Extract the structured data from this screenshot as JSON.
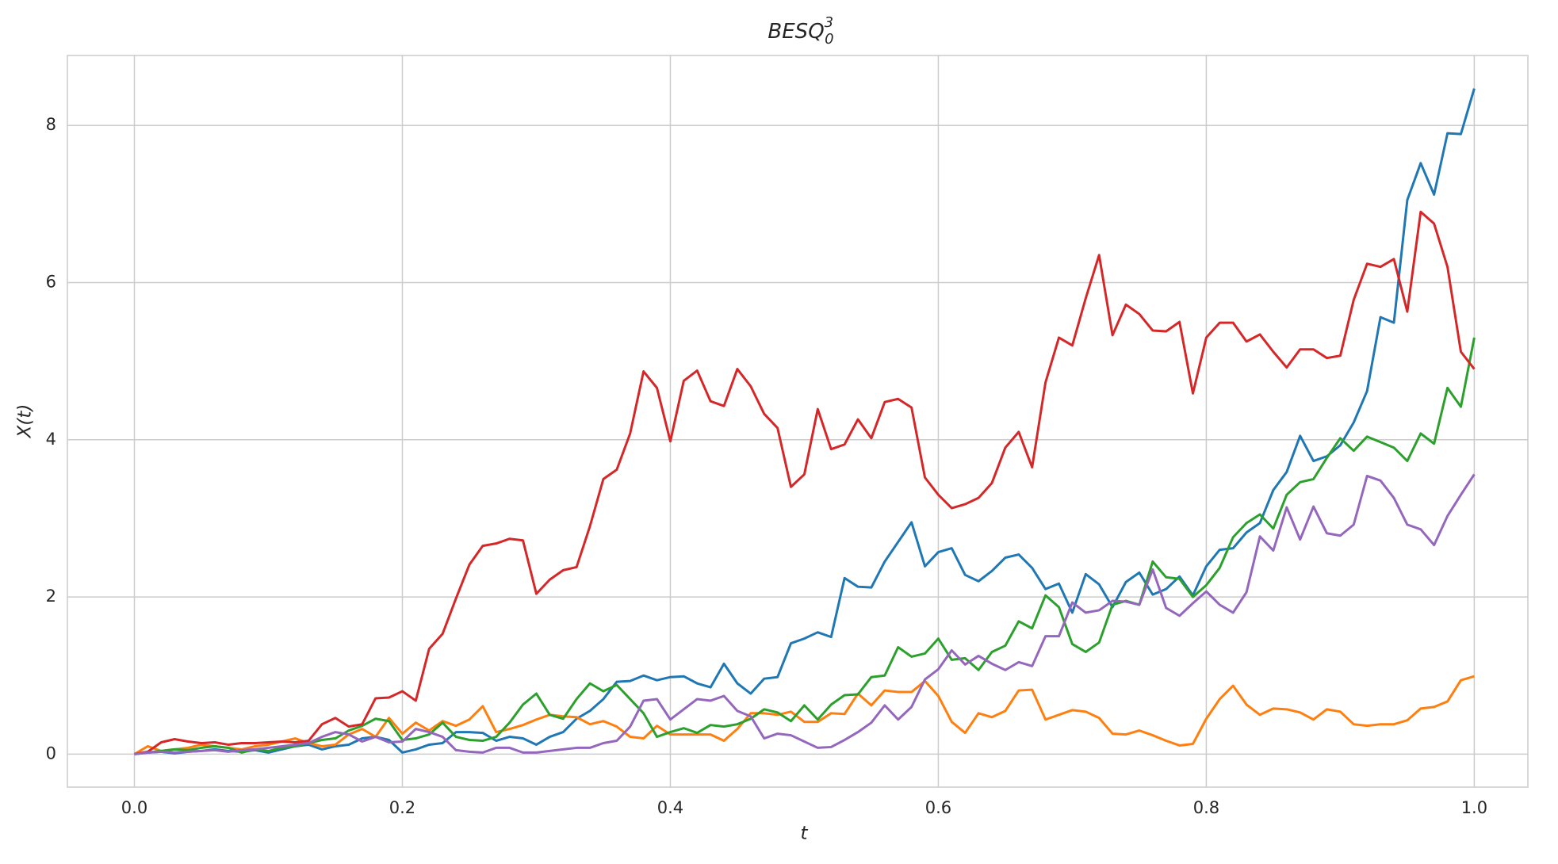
{
  "chart_data": {
    "type": "line",
    "title": "BESQ",
    "title_subscript": "0",
    "title_superscript": "3",
    "x_label": "t",
    "y_label": "X(t)",
    "xlim": [
      -0.05,
      1.04
    ],
    "ylim": [
      -0.42,
      8.89
    ],
    "xticks": [
      {
        "value": 0,
        "label": "0.0"
      },
      0.2,
      0.4,
      0.6,
      0.8,
      {
        "value": 1,
        "label": "1.0"
      }
    ],
    "yticks": [
      0,
      2,
      4,
      6,
      8
    ],
    "grid": true,
    "x": [
      0,
      0.01,
      0.02,
      0.03,
      0.04,
      0.05,
      0.06,
      0.07,
      0.08,
      0.09,
      0.1,
      0.11,
      0.12,
      0.13,
      0.14,
      0.15,
      0.16,
      0.17,
      0.18,
      0.19,
      0.2,
      0.21,
      0.22,
      0.23,
      0.24,
      0.25,
      0.26,
      0.27,
      0.28,
      0.29,
      0.3,
      0.31,
      0.32,
      0.33,
      0.34,
      0.35,
      0.36,
      0.37,
      0.38,
      0.39,
      0.4,
      0.41,
      0.42,
      0.43,
      0.44,
      0.45,
      0.46,
      0.47,
      0.48,
      0.49,
      0.5,
      0.51,
      0.52,
      0.53,
      0.54,
      0.55,
      0.56,
      0.57,
      0.58,
      0.59,
      0.6,
      0.61,
      0.62,
      0.63,
      0.64,
      0.65,
      0.66,
      0.67,
      0.68,
      0.69,
      0.7,
      0.71,
      0.72,
      0.73,
      0.74,
      0.75,
      0.76,
      0.77,
      0.78,
      0.79,
      0.8,
      0.81,
      0.82,
      0.83,
      0.84,
      0.85,
      0.86,
      0.87,
      0.88,
      0.89,
      0.9,
      0.91,
      0.92,
      0.93,
      0.94,
      0.95,
      0.96,
      0.97,
      0.98,
      0.99,
      1
    ],
    "series": [
      {
        "color": "#1f77b4",
        "values": [
          0,
          0.02,
          0.03,
          0.01,
          0.03,
          0.04,
          0.06,
          0.04,
          0.03,
          0.05,
          0.02,
          0.06,
          0.1,
          0.12,
          0.06,
          0.1,
          0.12,
          0.2,
          0.22,
          0.18,
          0.02,
          0.06,
          0.12,
          0.14,
          0.28,
          0.28,
          0.27,
          0.17,
          0.22,
          0.2,
          0.12,
          0.22,
          0.28,
          0.45,
          0.55,
          0.7,
          0.92,
          0.93,
          1.0,
          0.94,
          0.98,
          0.99,
          0.9,
          0.85,
          1.15,
          0.9,
          0.77,
          0.96,
          0.98,
          1.41,
          1.47,
          1.55,
          1.49,
          2.24,
          2.13,
          2.12,
          2.45,
          2.7,
          2.95,
          2.39,
          2.57,
          2.62,
          2.28,
          2.2,
          2.33,
          2.5,
          2.54,
          2.37,
          2.1,
          2.17,
          1.8,
          2.29,
          2.16,
          1.87,
          2.19,
          2.31,
          2.03,
          2.1,
          2.26,
          2.02,
          2.39,
          2.6,
          2.62,
          2.82,
          2.94,
          3.36,
          3.59,
          4.05,
          3.73,
          3.79,
          3.93,
          4.22,
          4.62,
          5.56,
          5.49,
          7.05,
          7.52,
          7.12,
          7.9,
          7.89,
          8.47
        ]
      },
      {
        "color": "#ff7f0e",
        "values": [
          0,
          0.1,
          0.04,
          0.06,
          0.08,
          0.12,
          0.1,
          0.08,
          0.06,
          0.1,
          0.12,
          0.16,
          0.2,
          0.14,
          0.1,
          0.12,
          0.25,
          0.32,
          0.22,
          0.46,
          0.26,
          0.4,
          0.3,
          0.42,
          0.36,
          0.44,
          0.61,
          0.28,
          0.32,
          0.37,
          0.44,
          0.5,
          0.48,
          0.47,
          0.38,
          0.42,
          0.35,
          0.22,
          0.2,
          0.36,
          0.25,
          0.25,
          0.25,
          0.25,
          0.17,
          0.32,
          0.52,
          0.52,
          0.5,
          0.54,
          0.41,
          0.41,
          0.52,
          0.51,
          0.77,
          0.62,
          0.81,
          0.79,
          0.79,
          0.93,
          0.74,
          0.41,
          0.27,
          0.52,
          0.47,
          0.55,
          0.81,
          0.82,
          0.44,
          0.5,
          0.56,
          0.54,
          0.46,
          0.26,
          0.25,
          0.3,
          0.24,
          0.17,
          0.11,
          0.13,
          0.45,
          0.7,
          0.87,
          0.63,
          0.5,
          0.58,
          0.57,
          0.53,
          0.44,
          0.57,
          0.54,
          0.38,
          0.36,
          0.38,
          0.38,
          0.43,
          0.58,
          0.6,
          0.67,
          0.94,
          0.99
        ]
      },
      {
        "color": "#2ca02c",
        "values": [
          0,
          0.02,
          0.04,
          0.06,
          0.05,
          0.08,
          0.1,
          0.08,
          0.02,
          0.06,
          0.04,
          0.08,
          0.1,
          0.14,
          0.18,
          0.2,
          0.3,
          0.36,
          0.45,
          0.42,
          0.18,
          0.2,
          0.25,
          0.4,
          0.22,
          0.18,
          0.17,
          0.22,
          0.4,
          0.63,
          0.77,
          0.5,
          0.45,
          0.7,
          0.9,
          0.8,
          0.88,
          0.7,
          0.52,
          0.22,
          0.28,
          0.33,
          0.27,
          0.37,
          0.35,
          0.38,
          0.45,
          0.57,
          0.53,
          0.42,
          0.62,
          0.44,
          0.63,
          0.75,
          0.76,
          0.98,
          1.0,
          1.36,
          1.24,
          1.28,
          1.47,
          1.2,
          1.22,
          1.07,
          1.3,
          1.38,
          1.69,
          1.6,
          2.02,
          1.87,
          1.4,
          1.3,
          1.42,
          1.9,
          1.95,
          1.9,
          2.45,
          2.25,
          2.23,
          2.0,
          2.15,
          2.37,
          2.76,
          2.94,
          3.05,
          2.87,
          3.3,
          3.46,
          3.5,
          3.77,
          4.02,
          3.86,
          4.04,
          3.97,
          3.9,
          3.73,
          4.08,
          3.95,
          4.66,
          4.42,
          5.3
        ]
      },
      {
        "color": "#d62728",
        "values": [
          0,
          0.03,
          0.15,
          0.19,
          0.16,
          0.14,
          0.15,
          0.12,
          0.14,
          0.14,
          0.15,
          0.16,
          0.15,
          0.17,
          0.38,
          0.46,
          0.35,
          0.38,
          0.71,
          0.72,
          0.8,
          0.68,
          1.34,
          1.53,
          1.98,
          2.41,
          2.65,
          2.68,
          2.74,
          2.72,
          2.04,
          2.22,
          2.34,
          2.38,
          2.9,
          3.5,
          3.62,
          4.08,
          4.87,
          4.66,
          3.98,
          4.75,
          4.88,
          4.49,
          4.43,
          4.9,
          4.68,
          4.33,
          4.15,
          3.4,
          3.56,
          4.39,
          3.88,
          3.94,
          4.26,
          4.02,
          4.48,
          4.52,
          4.41,
          3.52,
          3.3,
          3.13,
          3.18,
          3.26,
          3.45,
          3.9,
          4.1,
          3.65,
          4.73,
          5.3,
          5.2,
          5.8,
          6.35,
          5.33,
          5.72,
          5.6,
          5.39,
          5.38,
          5.5,
          4.59,
          5.3,
          5.49,
          5.49,
          5.25,
          5.34,
          5.12,
          4.92,
          5.15,
          5.15,
          5.04,
          5.07,
          5.78,
          6.24,
          6.2,
          6.3,
          5.63,
          6.9,
          6.75,
          6.2,
          5.12,
          4.9
        ]
      },
      {
        "color": "#9467bd",
        "values": [
          0,
          0.02,
          0.03,
          0.02,
          0.03,
          0.04,
          0.05,
          0.03,
          0.05,
          0.06,
          0.08,
          0.1,
          0.12,
          0.14,
          0.22,
          0.28,
          0.25,
          0.16,
          0.22,
          0.15,
          0.16,
          0.32,
          0.28,
          0.22,
          0.05,
          0.03,
          0.02,
          0.08,
          0.08,
          0.02,
          0.02,
          0.04,
          0.06,
          0.08,
          0.08,
          0.14,
          0.17,
          0.35,
          0.68,
          0.7,
          0.44,
          0.57,
          0.7,
          0.68,
          0.74,
          0.55,
          0.48,
          0.2,
          0.26,
          0.24,
          0.16,
          0.08,
          0.09,
          0.18,
          0.28,
          0.4,
          0.62,
          0.44,
          0.6,
          0.95,
          1.08,
          1.32,
          1.14,
          1.25,
          1.15,
          1.07,
          1.17,
          1.12,
          1.5,
          1.5,
          1.93,
          1.8,
          1.83,
          1.95,
          1.94,
          1.9,
          2.35,
          1.86,
          1.76,
          1.92,
          2.07,
          1.9,
          1.8,
          2.06,
          2.77,
          2.59,
          3.14,
          2.73,
          3.15,
          2.81,
          2.78,
          2.92,
          3.54,
          3.48,
          3.26,
          2.92,
          2.86,
          2.66,
          3.03,
          3.3,
          3.56
        ]
      }
    ]
  }
}
